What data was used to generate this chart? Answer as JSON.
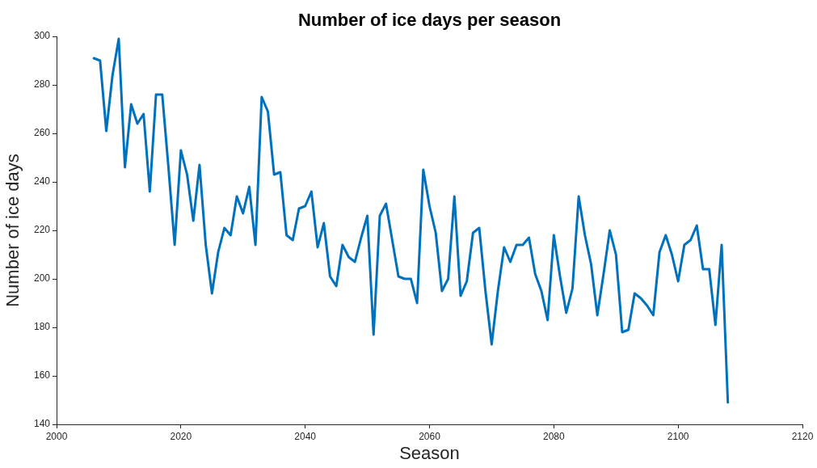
{
  "chart_data": {
    "type": "line",
    "title": "Number of ice days per season",
    "xlabel": "Season",
    "ylabel": "Number of ice days",
    "x": [
      2006,
      2007,
      2008,
      2009,
      2010,
      2011,
      2012,
      2013,
      2014,
      2015,
      2016,
      2017,
      2018,
      2019,
      2020,
      2021,
      2022,
      2023,
      2024,
      2025,
      2026,
      2027,
      2028,
      2029,
      2030,
      2031,
      2032,
      2033,
      2034,
      2035,
      2036,
      2037,
      2038,
      2039,
      2040,
      2041,
      2042,
      2043,
      2044,
      2045,
      2046,
      2047,
      2048,
      2049,
      2050,
      2051,
      2052,
      2053,
      2054,
      2055,
      2056,
      2057,
      2058,
      2059,
      2060,
      2061,
      2062,
      2063,
      2064,
      2065,
      2066,
      2067,
      2068,
      2069,
      2070,
      2071,
      2072,
      2073,
      2074,
      2075,
      2076,
      2077,
      2078,
      2079,
      2080,
      2081,
      2082,
      2083,
      2084,
      2085,
      2086,
      2087,
      2088,
      2089,
      2090,
      2091,
      2092,
      2093,
      2094,
      2095,
      2096,
      2097,
      2098,
      2099,
      2100,
      2101,
      2102,
      2103,
      2104,
      2105,
      2106,
      2107,
      2108
    ],
    "series": [
      {
        "color": "#0072bd",
        "values": [
          291,
          290,
          261,
          284,
          299,
          246,
          272,
          264,
          268,
          236,
          276,
          276,
          246,
          214,
          253,
          243,
          224,
          247,
          214,
          194,
          211,
          221,
          218,
          234,
          227,
          238,
          214,
          275,
          269,
          243,
          244,
          218,
          216,
          229,
          230,
          236,
          213,
          223,
          201,
          197,
          214,
          209,
          207,
          217,
          226,
          177,
          226,
          231,
          216,
          201,
          200,
          200,
          190,
          245,
          230,
          219,
          195,
          200,
          234,
          193,
          199,
          219,
          221,
          195,
          173,
          195,
          213,
          207,
          214,
          214,
          217,
          202,
          195,
          183,
          218,
          201,
          186,
          196,
          234,
          218,
          206,
          185,
          202,
          220,
          210,
          178,
          179,
          194,
          192,
          189,
          185,
          211,
          218,
          210,
          199,
          214,
          216,
          222,
          204,
          204,
          181,
          214,
          149
        ]
      }
    ],
    "xlim": [
      2000,
      2120
    ],
    "xticks": [
      2000,
      2020,
      2040,
      2060,
      2080,
      2100,
      2120
    ],
    "ylim": [
      140,
      300
    ],
    "yticks": [
      140,
      160,
      180,
      200,
      220,
      240,
      260,
      280,
      300
    ],
    "grid": false,
    "legend": false,
    "marker": "none",
    "line_style": "solid"
  }
}
